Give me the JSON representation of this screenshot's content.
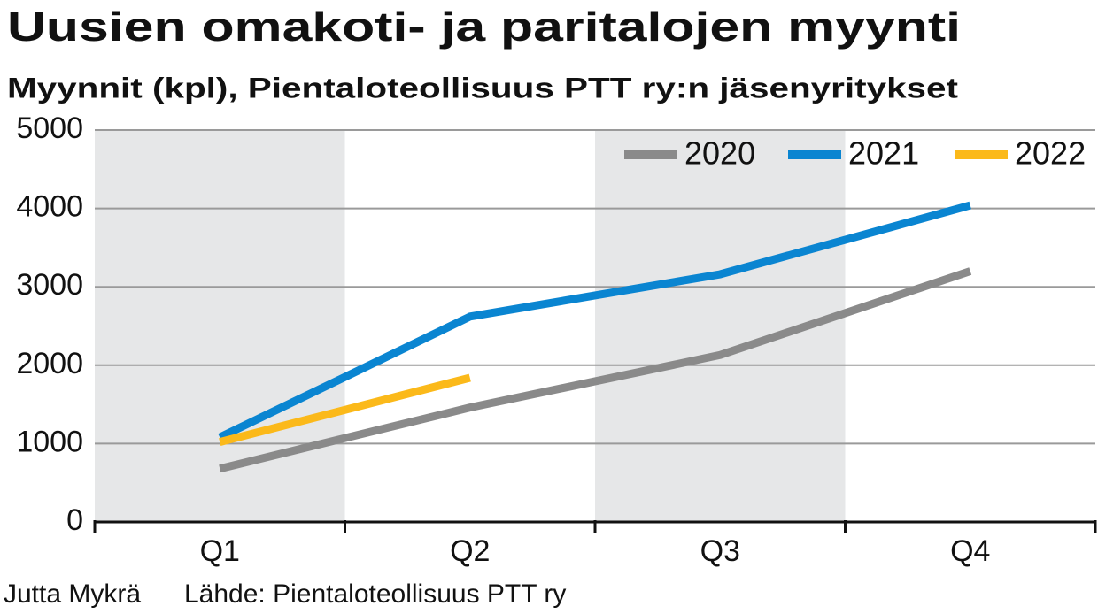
{
  "chart_data": {
    "type": "line",
    "title": "Uusien omakoti- ja paritalojen myynti",
    "subtitle": "Myynnit (kpl), Pientaloteollisuus PTT ry:n jäsenyritykset",
    "categories": [
      "Q1",
      "Q2",
      "Q3",
      "Q4"
    ],
    "series": [
      {
        "name": "2020",
        "color": "#8a8a8a",
        "values": [
          680,
          1460,
          2130,
          3200
        ]
      },
      {
        "name": "2021",
        "color": "#0a85d1",
        "values": [
          1080,
          2620,
          3160,
          4040
        ]
      },
      {
        "name": "2022",
        "color": "#fbb91a",
        "values": [
          1020,
          1840,
          null,
          null
        ]
      }
    ],
    "ylim": [
      0,
      5000
    ],
    "yticks": [
      0,
      1000,
      2000,
      3000,
      4000,
      5000
    ],
    "grid": true,
    "legend": "top-right",
    "credit": "Jutta Mykrä",
    "source": "Lähde: Pientaloteollisuus PTT ry"
  }
}
